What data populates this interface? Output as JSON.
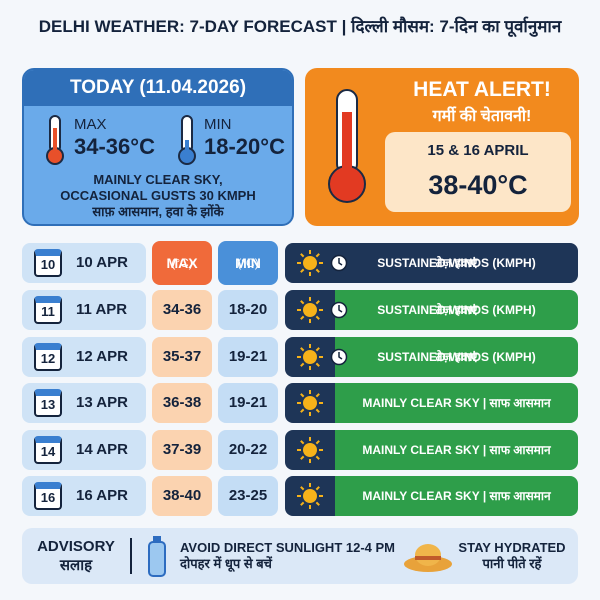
{
  "header": {
    "title": "DELHI WEATHER: 7-DAY FORECAST | दिल्ली मौसम: 7-दिन का पूर्वानुमान"
  },
  "today": {
    "title": "TODAY (11.04.2026)",
    "max_label": "MAX",
    "max": "34-36°C",
    "min_label": "MIN",
    "min": "18-20°C",
    "description": [
      "MAINLY CLEAR SKY,",
      "OCCASIONAL GUSTS 30 KMPH",
      "साफ़ आसमान, हवा के झोंके"
    ]
  },
  "alert": {
    "title": "HEAT ALERT!",
    "subtitle": "गर्मी की चेतावनी!",
    "dates": "15 & 16 APRIL",
    "temp": "38-40°C"
  },
  "table": {
    "columns": {
      "max": [
        "MAX",
        "(°C)"
      ],
      "min": [
        "MIN",
        "(°C)"
      ]
    },
    "rows": [
      {
        "day": "10",
        "date": "10 APR",
        "condition": [
          "SUSTAINED WINDS (KMPH)",
          "तेज़ हवाएं"
        ]
      },
      {
        "day": "11",
        "date": "11 APR",
        "max": "34-36",
        "min": "18-20",
        "condition": [
          "SUSTAINED WINDS (KMPH)",
          "तेज़ हवाएं"
        ]
      },
      {
        "day": "12",
        "date": "12 APR",
        "max": "35-37",
        "min": "19-21",
        "condition": [
          "SUSTAINED WINDS (KMPH)",
          "तेज़ हवाएं"
        ]
      },
      {
        "day": "13",
        "date": "13 APR",
        "max": "36-38",
        "min": "19-21",
        "condition": [
          "MAINLY CLEAR SKY | साफ आसमान"
        ]
      },
      {
        "day": "14",
        "date": "14 APR",
        "max": "37-39",
        "min": "20-22",
        "condition": [
          "MAINLY CLEAR SKY | साफ आसमान"
        ]
      },
      {
        "day": "16",
        "date": "16 APR",
        "max": "38-40",
        "min": "23-25",
        "condition": [
          "MAINLY CLEAR SKY | साफ आसमान"
        ]
      }
    ]
  },
  "advisory": {
    "title": "ADVISORY",
    "subtitle": "सलाह",
    "tip1": [
      "AVOID DIRECT SUNLIGHT 12-4 PM",
      "दोपहर में धूप से बचें"
    ],
    "tip2": [
      "STAY HYDRATED",
      "पानी पीते रहें"
    ]
  }
}
